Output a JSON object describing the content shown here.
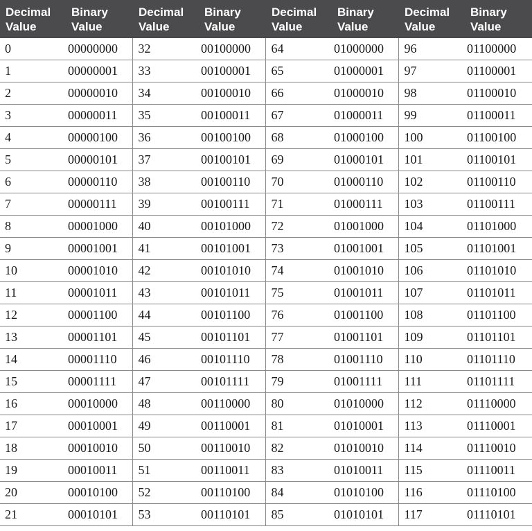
{
  "headers": [
    "Decimal Value",
    "Binary Value",
    "Decimal Value",
    "Binary Value",
    "Decimal Value",
    "Binary Value",
    "Decimal Value",
    "Binary Value"
  ],
  "rows": [
    [
      "0",
      "00000000",
      "32",
      "00100000",
      "64",
      "01000000",
      "96",
      "01100000"
    ],
    [
      "1",
      "00000001",
      "33",
      "00100001",
      "65",
      "01000001",
      "97",
      "01100001"
    ],
    [
      "2",
      "00000010",
      "34",
      "00100010",
      "66",
      "01000010",
      "98",
      "01100010"
    ],
    [
      "3",
      "00000011",
      "35",
      "00100011",
      "67",
      "01000011",
      "99",
      "01100011"
    ],
    [
      "4",
      "00000100",
      "36",
      "00100100",
      "68",
      "01000100",
      "100",
      "01100100"
    ],
    [
      "5",
      "00000101",
      "37",
      "00100101",
      "69",
      "01000101",
      "101",
      "01100101"
    ],
    [
      "6",
      "00000110",
      "38",
      "00100110",
      "70",
      "01000110",
      "102",
      "01100110"
    ],
    [
      "7",
      "00000111",
      "39",
      "00100111",
      "71",
      "01000111",
      "103",
      "01100111"
    ],
    [
      "8",
      "00001000",
      "40",
      "00101000",
      "72",
      "01001000",
      "104",
      "01101000"
    ],
    [
      "9",
      "00001001",
      "41",
      "00101001",
      "73",
      "01001001",
      "105",
      "01101001"
    ],
    [
      "10",
      "00001010",
      "42",
      "00101010",
      "74",
      "01001010",
      "106",
      "01101010"
    ],
    [
      "11",
      "00001011",
      "43",
      "00101011",
      "75",
      "01001011",
      "107",
      "01101011"
    ],
    [
      "12",
      "00001100",
      "44",
      "00101100",
      "76",
      "01001100",
      "108",
      "01101100"
    ],
    [
      "13",
      "00001101",
      "45",
      "00101101",
      "77",
      "01001101",
      "109",
      "01101101"
    ],
    [
      "14",
      "00001110",
      "46",
      "00101110",
      "78",
      "01001110",
      "110",
      "01101110"
    ],
    [
      "15",
      "00001111",
      "47",
      "00101111",
      "79",
      "01001111",
      "111",
      "01101111"
    ],
    [
      "16",
      "00010000",
      "48",
      "00110000",
      "80",
      "01010000",
      "112",
      "01110000"
    ],
    [
      "17",
      "00010001",
      "49",
      "00110001",
      "81",
      "01010001",
      "113",
      "01110001"
    ],
    [
      "18",
      "00010010",
      "50",
      "00110010",
      "82",
      "01010010",
      "114",
      "01110010"
    ],
    [
      "19",
      "00010011",
      "51",
      "00110011",
      "83",
      "01010011",
      "115",
      "01110011"
    ],
    [
      "20",
      "00010100",
      "52",
      "00110100",
      "84",
      "01010100",
      "116",
      "01110100"
    ],
    [
      "21",
      "00010101",
      "53",
      "00110101",
      "85",
      "01010101",
      "117",
      "01110101"
    ]
  ]
}
